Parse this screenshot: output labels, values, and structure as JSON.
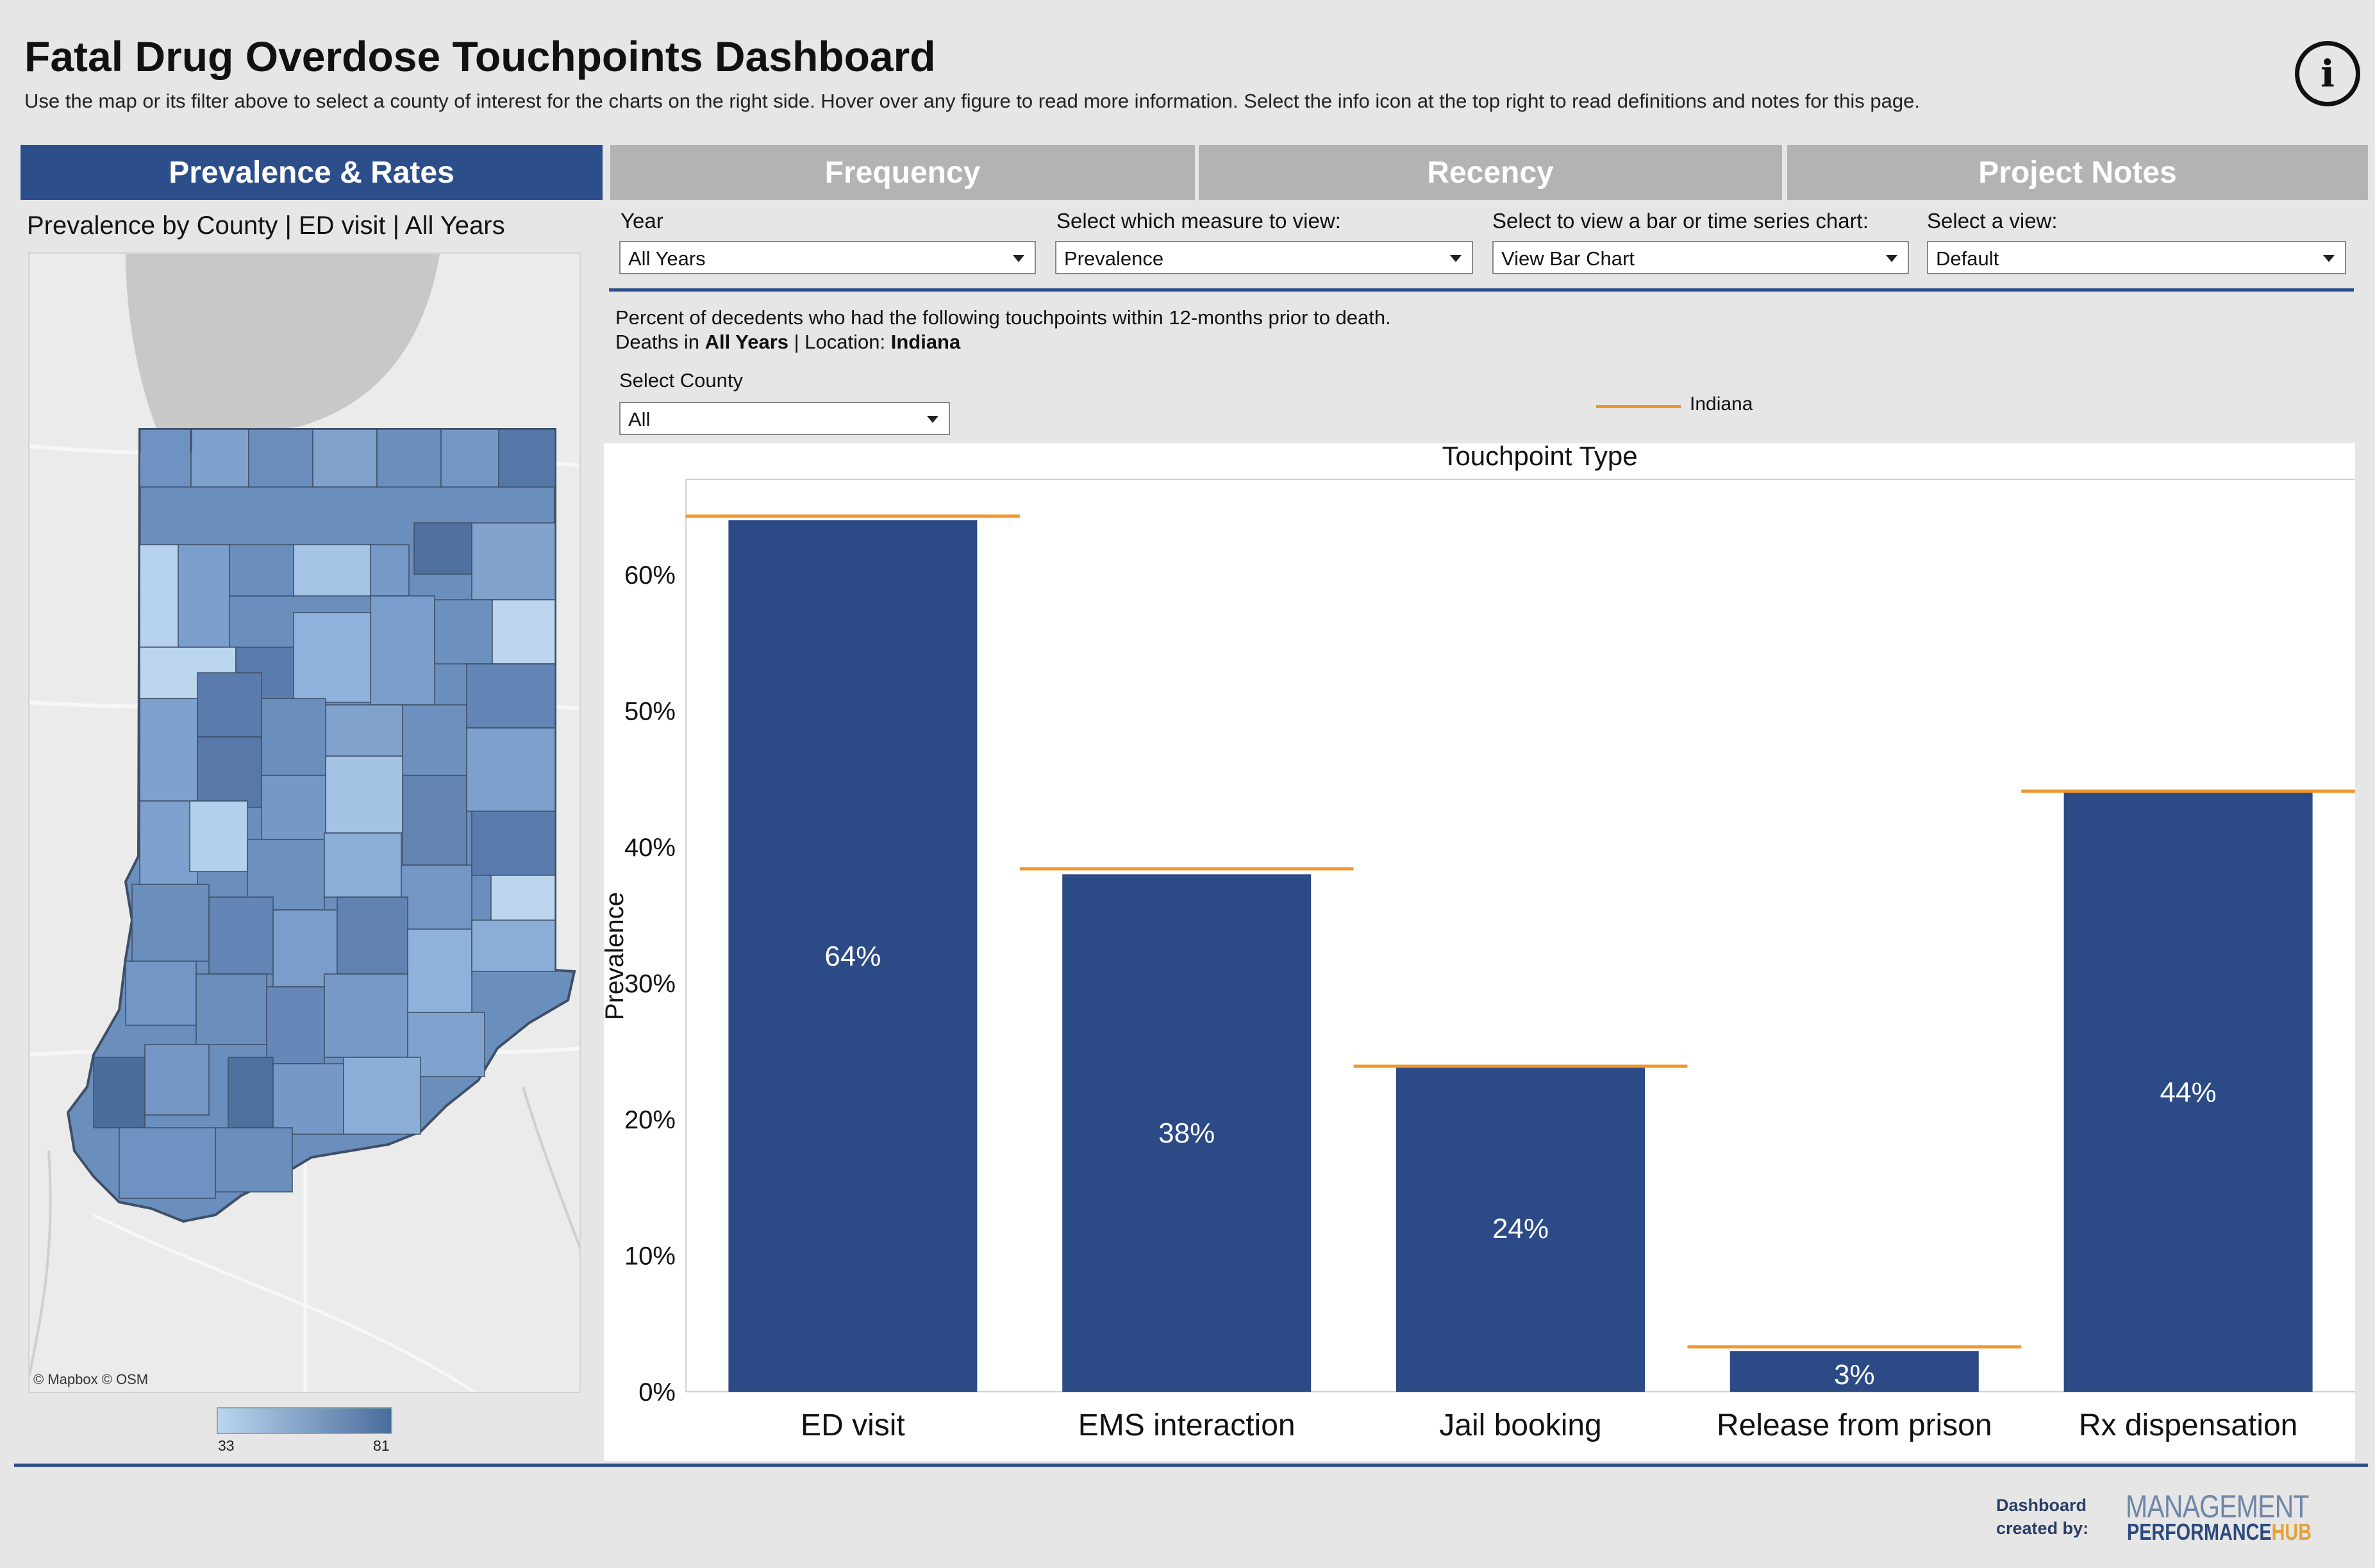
{
  "header": {
    "title": "Fatal Drug Overdose Touchpoints Dashboard",
    "subtitle": "Use the map or its filter above to select a county of interest for the charts on the right side. Hover over any figure to read more information. Select the info icon at the top right to read definitions and notes for this page.",
    "info_icon": "i"
  },
  "tabs": [
    {
      "label": "Prevalence & Rates",
      "active": true
    },
    {
      "label": "Frequency",
      "active": false
    },
    {
      "label": "Recency",
      "active": false
    },
    {
      "label": "Project Notes",
      "active": false
    }
  ],
  "map": {
    "title": "Prevalence by County | ED visit | All Years",
    "credit": "© Mapbox  © OSM",
    "legend_min": "33",
    "legend_max": "81",
    "color_low": "#bcd6ee",
    "color_high": "#4a6d9c"
  },
  "filters": {
    "year": {
      "label": "Year",
      "value": "All Years"
    },
    "measure": {
      "label": "Select which measure to view:",
      "value": "Prevalence"
    },
    "chart_type": {
      "label": "Select to view a bar or time series chart:",
      "value": "View Bar Chart"
    },
    "view": {
      "label": "Select a view:",
      "value": "Default"
    },
    "county": {
      "label": "Select County",
      "value": "All"
    }
  },
  "description": {
    "line1": "Percent of decedents who had the following touchpoints within 12-months prior to death.",
    "line2_prefix": "Deaths in ",
    "line2_years": "All Years",
    "line2_sep": " | Location: ",
    "line2_location": "Indiana"
  },
  "chart_legend": {
    "label": "Indiana",
    "color": "#f0962e"
  },
  "chart_data": {
    "type": "bar",
    "title": "Touchpoint Type",
    "ylabel": "Prevalence",
    "xlabel": "",
    "categories": [
      "ED visit",
      "EMS interaction",
      "Jail booking",
      "Release from prison",
      "Rx dispensation"
    ],
    "values": [
      64,
      38,
      24,
      3,
      44
    ],
    "data_labels": [
      "64%",
      "38%",
      "24%",
      "3%",
      "44%"
    ],
    "reference_series": {
      "name": "Indiana",
      "values": [
        64.3,
        38.4,
        23.9,
        3.3,
        44.1
      ]
    },
    "ylim": [
      0,
      67
    ],
    "yticks": [
      0,
      10,
      20,
      30,
      40,
      50,
      60
    ],
    "ytick_labels": [
      "0%",
      "10%",
      "20%",
      "30%",
      "40%",
      "50%",
      "60%"
    ],
    "bar_color": "#2c4a86",
    "reference_color": "#f0962e",
    "grid": false
  },
  "footer": {
    "credit_line1": "Dashboard",
    "credit_line2": "created by:",
    "logo_top": "MANAGEMENT",
    "logo_bottom_a": "PERFORMANCE",
    "logo_bottom_b": "HUB"
  }
}
